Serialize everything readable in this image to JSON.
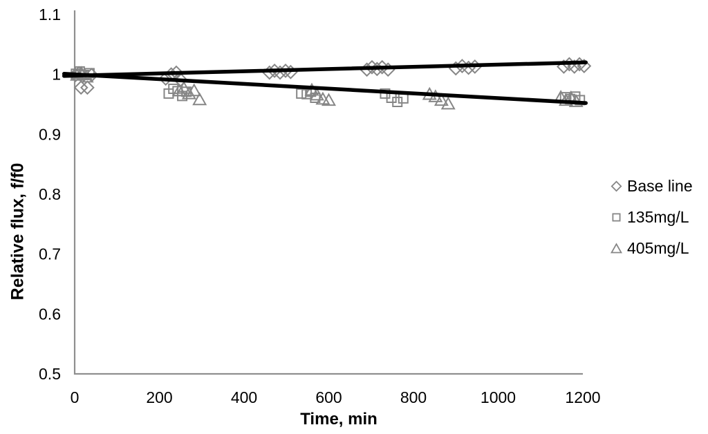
{
  "chart_data": {
    "type": "scatter",
    "title": "",
    "xlabel": "Time, min",
    "ylabel": "Relative flux, f/f0",
    "xlim": [
      0,
      1200
    ],
    "ylim": [
      0.5,
      1.1
    ],
    "grid": false,
    "legend_position": "right-middle",
    "xticks": [
      {
        "value": 0,
        "label": "0"
      },
      {
        "value": 200,
        "label": "200"
      },
      {
        "value": 400,
        "label": "400"
      },
      {
        "value": 600,
        "label": "600"
      },
      {
        "value": 800,
        "label": "800"
      },
      {
        "value": 1000,
        "label": "1000"
      },
      {
        "value": 1200,
        "label": "1200"
      }
    ],
    "yticks": [
      {
        "value": 1.1,
        "label": "1.1"
      },
      {
        "value": 1.0,
        "label": "1"
      },
      {
        "value": 0.9,
        "label": "0.9"
      },
      {
        "value": 0.8,
        "label": "0.8"
      },
      {
        "value": 0.7,
        "label": "0.7"
      },
      {
        "value": 0.6,
        "label": "0.6"
      },
      {
        "value": 0.5,
        "label": "0.5"
      }
    ],
    "colors": {
      "marker": "#868686",
      "trend_line": "#000000",
      "axis": "#8e8e8e",
      "text": "#000000"
    },
    "series": [
      {
        "name": "Base line",
        "marker": "diamond",
        "points": [
          [
            2,
            0.999
          ],
          [
            10,
            1.002
          ],
          [
            18,
            0.997
          ],
          [
            15,
            0.978
          ],
          [
            30,
            0.978
          ],
          [
            40,
            0.999
          ],
          [
            215,
            0.993
          ],
          [
            228,
            1.0
          ],
          [
            240,
            1.003
          ],
          [
            250,
            0.991
          ],
          [
            460,
            1.003
          ],
          [
            472,
            1.006
          ],
          [
            485,
            1.003
          ],
          [
            498,
            1.006
          ],
          [
            510,
            1.004
          ],
          [
            690,
            1.008
          ],
          [
            702,
            1.012
          ],
          [
            714,
            1.009
          ],
          [
            726,
            1.012
          ],
          [
            740,
            1.008
          ],
          [
            900,
            1.01
          ],
          [
            915,
            1.014
          ],
          [
            930,
            1.011
          ],
          [
            945,
            1.013
          ],
          [
            1155,
            1.013
          ],
          [
            1168,
            1.017
          ],
          [
            1180,
            1.013
          ],
          [
            1192,
            1.017
          ],
          [
            1203,
            1.014
          ]
        ]
      },
      {
        "name": "135mg/L",
        "marker": "square",
        "points": [
          [
            3,
            1.001
          ],
          [
            12,
            1.005
          ],
          [
            22,
            0.999
          ],
          [
            35,
            1.002
          ],
          [
            222,
            0.968
          ],
          [
            233,
            0.976
          ],
          [
            243,
            0.972
          ],
          [
            254,
            0.964
          ],
          [
            264,
            0.971
          ],
          [
            535,
            0.968
          ],
          [
            548,
            0.967
          ],
          [
            558,
            0.971
          ],
          [
            568,
            0.961
          ],
          [
            733,
            0.968
          ],
          [
            748,
            0.961
          ],
          [
            762,
            0.954
          ],
          [
            776,
            0.96
          ],
          [
            1158,
            0.962
          ],
          [
            1170,
            0.959
          ],
          [
            1182,
            0.963
          ],
          [
            1193,
            0.957
          ]
        ]
      },
      {
        "name": "405mg/L",
        "marker": "triangle",
        "points": [
          [
            6,
            0.999
          ],
          [
            16,
            1.002
          ],
          [
            28,
            0.996
          ],
          [
            247,
            0.973
          ],
          [
            258,
            0.977
          ],
          [
            270,
            0.968
          ],
          [
            282,
            0.973
          ],
          [
            295,
            0.958
          ],
          [
            560,
            0.974
          ],
          [
            572,
            0.966
          ],
          [
            586,
            0.959
          ],
          [
            600,
            0.957
          ],
          [
            838,
            0.967
          ],
          [
            852,
            0.963
          ],
          [
            866,
            0.957
          ],
          [
            882,
            0.951
          ],
          [
            1148,
            0.962
          ],
          [
            1160,
            0.957
          ],
          [
            1172,
            0.961
          ],
          [
            1184,
            0.955
          ]
        ]
      }
    ],
    "trendlines": [
      {
        "series": "Base line",
        "from": [
          -25,
          0.9975
        ],
        "to": [
          1207,
          1.0201
        ]
      },
      {
        "series": "135mg/L & 405mg/L",
        "from": [
          -25,
          1.001
        ],
        "to": [
          1207,
          0.9522
        ]
      }
    ]
  }
}
